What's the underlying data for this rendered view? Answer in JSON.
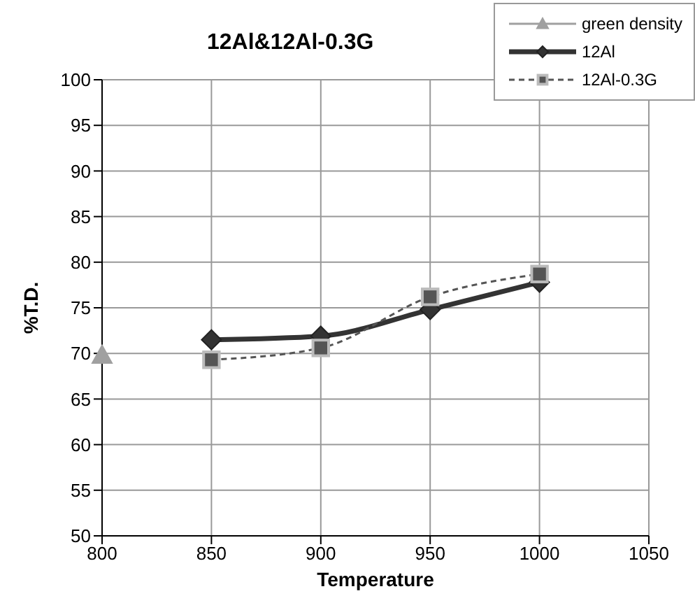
{
  "chart_data": {
    "type": "line",
    "title": "12Al&12Al-0.3G",
    "xlabel": "Temperature",
    "ylabel": "%T.D.",
    "xlim": [
      800,
      1050
    ],
    "xticks": [
      800,
      850,
      900,
      950,
      1000,
      1050
    ],
    "ylim": [
      50,
      100
    ],
    "yticks": [
      50,
      55,
      60,
      65,
      70,
      75,
      80,
      85,
      90,
      95,
      100
    ],
    "grid": true,
    "legend": "top right",
    "series": [
      {
        "name": "green density",
        "type": "scatter",
        "color": "#a0a0a0",
        "marker": "triangle",
        "line_style": "solid",
        "x": [
          800
        ],
        "values": [
          69.8
        ]
      },
      {
        "name": "12Al",
        "color": "#333333",
        "marker": "diamond",
        "line_style": "solid",
        "x": [
          850,
          900,
          950,
          1000
        ],
        "values": [
          71.5,
          71.9,
          74.8,
          77.8
        ]
      },
      {
        "name": "12Al-0.3G",
        "color": "#555555",
        "marker": "square",
        "line_style": "dashed",
        "x": [
          850,
          900,
          950,
          1000
        ],
        "values": [
          69.3,
          70.6,
          76.2,
          78.7
        ]
      }
    ]
  }
}
